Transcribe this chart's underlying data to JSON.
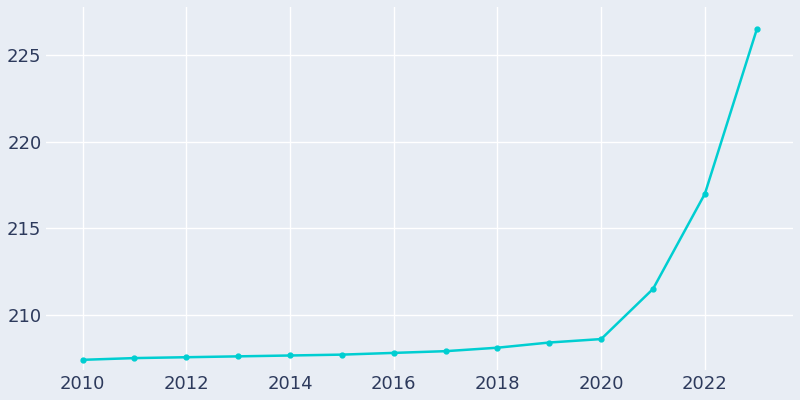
{
  "years": [
    2010,
    2011,
    2012,
    2013,
    2014,
    2015,
    2016,
    2017,
    2018,
    2019,
    2020,
    2021,
    2022,
    2023
  ],
  "population": [
    207.4,
    207.5,
    207.55,
    207.6,
    207.65,
    207.7,
    207.8,
    207.9,
    208.1,
    208.4,
    208.6,
    211.5,
    217.0,
    226.5
  ],
  "line_color": "#00CED1",
  "marker": "o",
  "marker_size": 3.5,
  "bg_color": "#E8EDF4",
  "grid_color": "#FFFFFF",
  "xlabel": "",
  "ylabel": "",
  "xlim": [
    2009.3,
    2023.7
  ],
  "ylim": [
    206.8,
    227.8
  ],
  "yticks": [
    210,
    215,
    220,
    225
  ],
  "xticks": [
    2010,
    2012,
    2014,
    2016,
    2018,
    2020,
    2022
  ],
  "tick_label_color": "#2d3a5c",
  "spine_color": "#E8EDF4",
  "tick_fontsize": 13
}
